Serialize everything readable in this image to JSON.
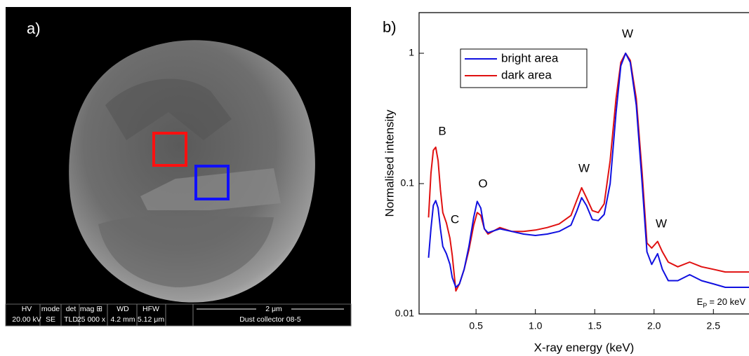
{
  "panel_a": {
    "label": "a)",
    "info_headers": [
      "HV",
      "mode",
      "det",
      "mag ⊞",
      "WD",
      "HFW"
    ],
    "info_values": [
      "20.00 kV",
      "SE",
      "TLD",
      "25 000 x",
      "4.2 mm",
      "5.12 μm"
    ],
    "scale_bar": "2 μm",
    "caption": "Dust collector 08-5"
  },
  "chart_data": {
    "type": "line",
    "panel_label": "b)",
    "x_label": "X-ray energy (keV)",
    "y_label": "Normalised intensity",
    "log_y": true,
    "xlim": [
      0.02,
      2.8
    ],
    "ylim": [
      0.01,
      2.05
    ],
    "xticks": [
      0.5,
      {
        "value": 1,
        "label": "1.0"
      },
      1.5,
      {
        "value": 2,
        "label": "2.0"
      },
      2.5
    ],
    "yticks": [
      0.01,
      0.1,
      1
    ],
    "legend": "upper left",
    "x": [
      0.1,
      0.12,
      0.14,
      0.16,
      0.18,
      0.2,
      0.22,
      0.25,
      0.28,
      0.3,
      0.33,
      0.36,
      0.4,
      0.44,
      0.48,
      0.51,
      0.54,
      0.57,
      0.6,
      0.7,
      0.8,
      0.9,
      1.0,
      1.1,
      1.2,
      1.3,
      1.35,
      1.39,
      1.43,
      1.48,
      1.53,
      1.58,
      1.63,
      1.68,
      1.72,
      1.76,
      1.8,
      1.85,
      1.9,
      1.94,
      1.98,
      2.03,
      2.07,
      2.12,
      2.2,
      2.3,
      2.4,
      2.5,
      2.6,
      2.7,
      2.8
    ],
    "series": [
      {
        "name": "bright area",
        "color": "#1010e0",
        "values": [
          0.027,
          0.045,
          0.068,
          0.074,
          0.065,
          0.045,
          0.033,
          0.029,
          0.024,
          0.019,
          0.016,
          0.017,
          0.022,
          0.033,
          0.055,
          0.073,
          0.065,
          0.045,
          0.042,
          0.045,
          0.043,
          0.041,
          0.04,
          0.041,
          0.043,
          0.048,
          0.062,
          0.078,
          0.068,
          0.053,
          0.052,
          0.058,
          0.1,
          0.35,
          0.8,
          1.0,
          0.85,
          0.4,
          0.1,
          0.03,
          0.024,
          0.029,
          0.022,
          0.018,
          0.018,
          0.02,
          0.018,
          0.017,
          0.016,
          0.016,
          0.016
        ]
      },
      {
        "name": "dark area",
        "color": "#e01010",
        "values": [
          0.055,
          0.12,
          0.18,
          0.19,
          0.15,
          0.09,
          0.06,
          0.05,
          0.038,
          0.028,
          0.015,
          0.017,
          0.022,
          0.031,
          0.048,
          0.06,
          0.057,
          0.045,
          0.041,
          0.046,
          0.043,
          0.043,
          0.044,
          0.046,
          0.049,
          0.057,
          0.075,
          0.093,
          0.078,
          0.062,
          0.06,
          0.07,
          0.15,
          0.45,
          0.85,
          1.0,
          0.88,
          0.45,
          0.12,
          0.035,
          0.032,
          0.036,
          0.03,
          0.025,
          0.023,
          0.025,
          0.023,
          0.022,
          0.021,
          0.021,
          0.021
        ]
      }
    ],
    "annotations": [
      "B",
      "C",
      "O",
      "W",
      "W",
      "W"
    ],
    "energy_note": {
      "symbol": "E",
      "subscript": "P",
      "text": "= 20 keV"
    }
  }
}
